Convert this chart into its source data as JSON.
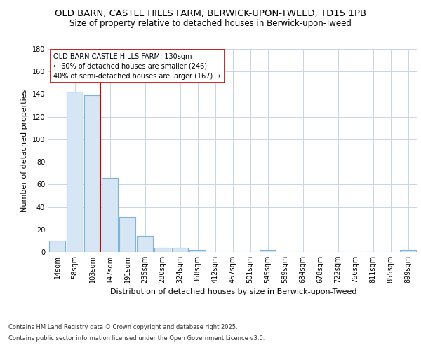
{
  "title1": "OLD BARN, CASTLE HILLS FARM, BERWICK-UPON-TWEED, TD15 1PB",
  "title2": "Size of property relative to detached houses in Berwick-upon-Tweed",
  "xlabel": "Distribution of detached houses by size in Berwick-upon-Tweed",
  "ylabel": "Number of detached properties",
  "bar_labels": [
    "14sqm",
    "58sqm",
    "103sqm",
    "147sqm",
    "191sqm",
    "235sqm",
    "280sqm",
    "324sqm",
    "368sqm",
    "412sqm",
    "457sqm",
    "501sqm",
    "545sqm",
    "589sqm",
    "634sqm",
    "678sqm",
    "722sqm",
    "766sqm",
    "811sqm",
    "855sqm",
    "899sqm"
  ],
  "bar_values": [
    10,
    142,
    139,
    66,
    31,
    14,
    4,
    4,
    2,
    0,
    0,
    0,
    2,
    0,
    0,
    0,
    0,
    0,
    0,
    0,
    2
  ],
  "bar_color": "#d6e6f5",
  "bar_edge_color": "#7fb3d8",
  "vline_color": "#cc0000",
  "annotation_text1": "OLD BARN CASTLE HILLS FARM: 130sqm",
  "annotation_text2": "← 60% of detached houses are smaller (246)",
  "annotation_text3": "40% of semi-detached houses are larger (167) →",
  "annotation_box_color": "#ffffff",
  "annotation_box_edge": "#cc0000",
  "ylim": [
    0,
    180
  ],
  "yticks": [
    0,
    20,
    40,
    60,
    80,
    100,
    120,
    140,
    160,
    180
  ],
  "bg_color": "#ffffff",
  "plot_bg_color": "#ffffff",
  "grid_color": "#c8d4e0",
  "footer1": "Contains HM Land Registry data © Crown copyright and database right 2025.",
  "footer2": "Contains public sector information licensed under the Open Government Licence v3.0.",
  "title_fontsize": 9.5,
  "subtitle_fontsize": 8.5,
  "axis_label_fontsize": 8,
  "tick_fontsize": 7,
  "annotation_fontsize": 7,
  "footer_fontsize": 6
}
